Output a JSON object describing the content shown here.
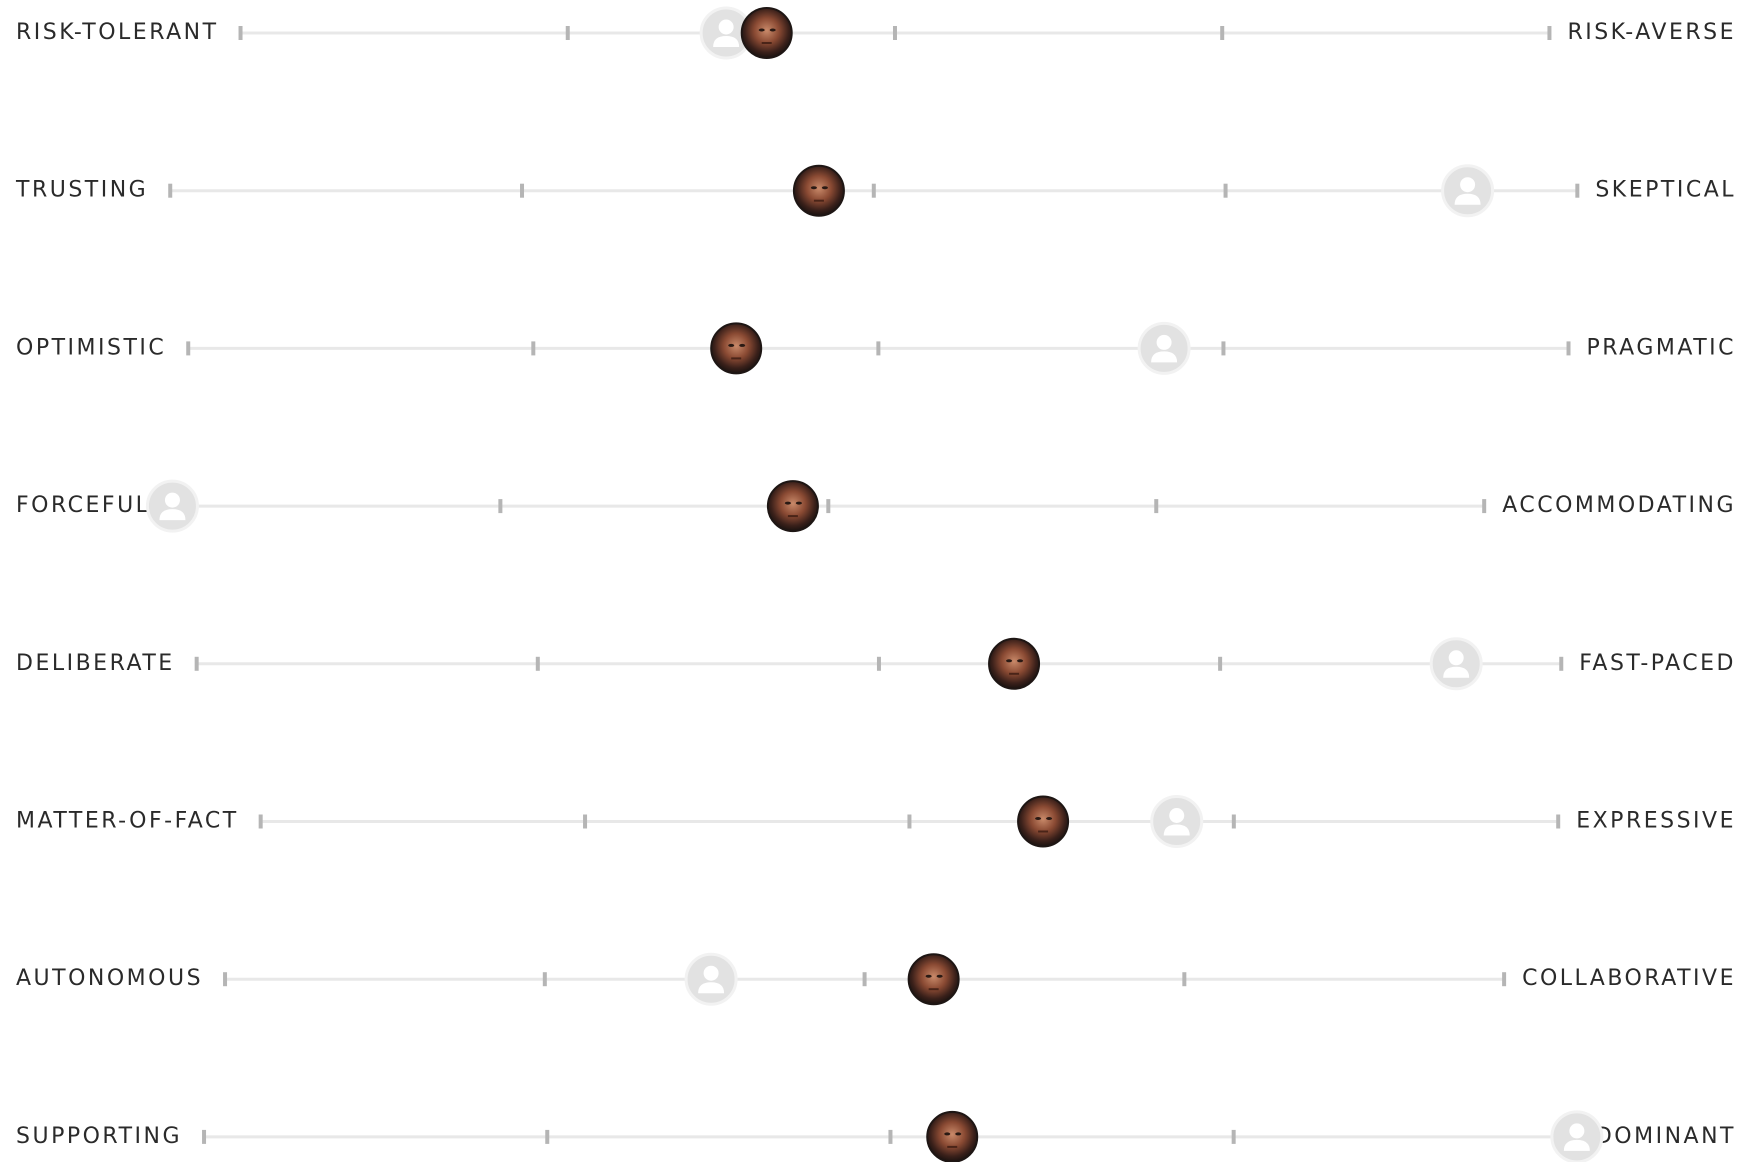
{
  "scale": {
    "min": 0,
    "max": 100,
    "ticks": [
      0,
      25,
      50,
      75,
      100
    ]
  },
  "traits": [
    {
      "left": "RISK-TOLERANT",
      "right": "RISK-AVERSE",
      "person": 40.2,
      "comparison": 37.1
    },
    {
      "left": "TRUSTING",
      "right": "SKEPTICAL",
      "person": 46.1,
      "comparison": 92.2
    },
    {
      "left": "OPTIMISTIC",
      "right": "PRAGMATIC",
      "person": 39.7,
      "comparison": 70.7
    },
    {
      "left": "FORCEFUL",
      "right": "ACCOMMODATING",
      "person": 47.3,
      "comparison": 0
    },
    {
      "left": "DELIBERATE",
      "right": "FAST-PACED",
      "person": 59.9,
      "comparison": 92.3
    },
    {
      "left": "MATTER-OF-FACT",
      "right": "EXPRESSIVE",
      "person": 60.3,
      "comparison": 70.6
    },
    {
      "left": "AUTONOMOUS",
      "right": "COLLABORATIVE",
      "person": 55.4,
      "comparison": 38.0
    },
    {
      "left": "SUPPORTING",
      "right": "DOMINANT",
      "person": 54.5,
      "comparison": 100
    }
  ]
}
